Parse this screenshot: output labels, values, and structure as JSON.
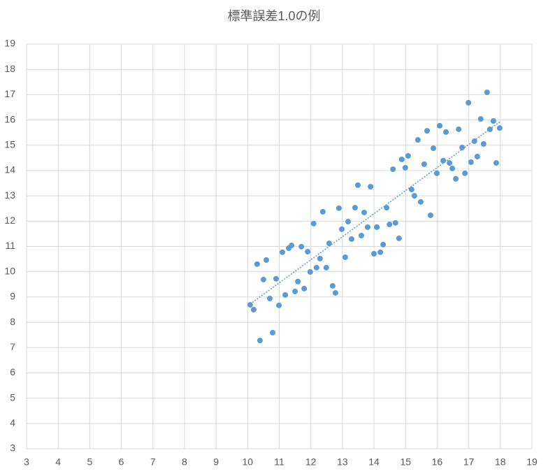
{
  "chart_data": {
    "type": "scatter",
    "title": "標準誤差1.0の例",
    "xlim": [
      3,
      19
    ],
    "ylim": [
      3,
      19
    ],
    "xticks": [
      3,
      4,
      5,
      6,
      7,
      8,
      9,
      10,
      11,
      12,
      13,
      14,
      15,
      16,
      17,
      18,
      19
    ],
    "yticks": [
      3,
      4,
      5,
      6,
      7,
      8,
      9,
      10,
      11,
      12,
      13,
      14,
      15,
      16,
      17,
      18,
      19
    ],
    "grid": true,
    "series": [
      {
        "color": "#5b9bd5",
        "x": [
          10.08,
          10.19,
          10.3,
          10.39,
          10.5,
          10.59,
          10.7,
          10.79,
          10.9,
          10.99,
          11.1,
          11.19,
          11.3,
          11.39,
          11.5,
          11.59,
          11.7,
          11.79,
          11.9,
          11.98,
          12.09,
          12.18,
          12.29,
          12.38,
          12.49,
          12.58,
          12.69,
          12.78,
          12.89,
          12.98,
          13.09,
          13.18,
          13.29,
          13.4,
          13.49,
          13.6,
          13.69,
          13.8,
          13.89,
          14.0,
          14.09,
          14.2,
          14.29,
          14.4,
          14.49,
          14.6,
          14.68,
          14.79,
          14.88,
          14.99,
          15.08,
          15.19,
          15.28,
          15.39,
          15.48,
          15.59,
          15.68,
          15.79,
          15.88,
          15.99,
          16.08,
          16.19,
          16.28,
          16.39,
          16.48,
          16.59,
          16.68,
          16.79,
          16.88,
          16.99,
          17.07,
          17.18,
          17.27,
          17.38,
          17.47,
          17.58,
          17.67,
          17.78,
          17.87,
          17.98
        ],
        "values": [
          8.69,
          8.5,
          10.3,
          7.28,
          9.69,
          10.46,
          8.94,
          7.59,
          9.72,
          8.67,
          10.77,
          9.08,
          10.93,
          11.04,
          9.22,
          9.61,
          10.99,
          9.33,
          10.79,
          9.99,
          11.9,
          10.16,
          10.52,
          12.37,
          10.16,
          11.12,
          9.44,
          9.16,
          12.51,
          11.68,
          10.57,
          11.98,
          11.29,
          12.53,
          13.42,
          11.43,
          12.34,
          11.76,
          13.36,
          10.71,
          11.76,
          10.77,
          11.07,
          12.53,
          11.87,
          14.05,
          11.93,
          11.32,
          14.44,
          14.11,
          14.58,
          13.25,
          13.0,
          15.21,
          12.76,
          14.25,
          15.57,
          12.23,
          14.88,
          13.89,
          15.77,
          14.39,
          15.52,
          14.3,
          14.08,
          13.67,
          15.63,
          14.91,
          13.89,
          16.68,
          14.33,
          15.16,
          14.55,
          16.04,
          15.05,
          17.09,
          15.63,
          15.96,
          14.3,
          15.68
        ]
      }
    ],
    "trendline": {
      "color": "#5b9bd5",
      "x": [
        10.08,
        17.98
      ],
      "values": [
        8.72,
        15.92
      ]
    }
  }
}
